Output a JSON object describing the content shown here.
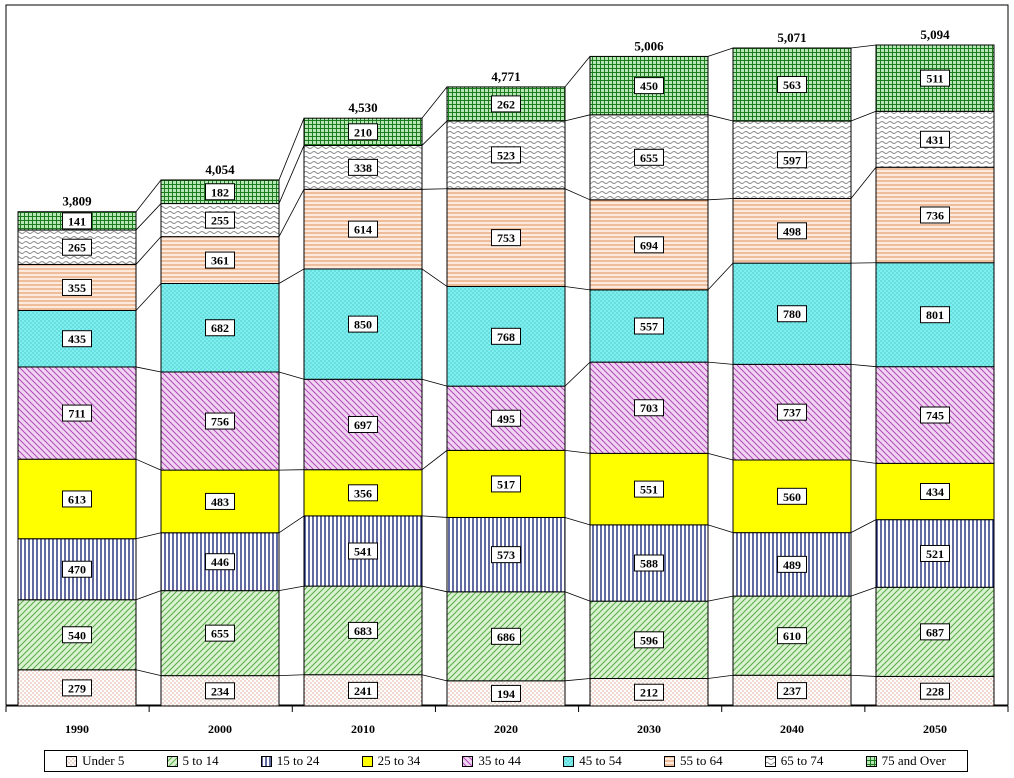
{
  "chart_data": {
    "type": "bar",
    "stacked": true,
    "categories": [
      "1990",
      "2000",
      "2010",
      "2020",
      "2030",
      "2040",
      "2050"
    ],
    "totals": [
      "3,809",
      "4,054",
      "4,530",
      "4,771",
      "5,006",
      "5,071",
      "5,094"
    ],
    "series": [
      {
        "name": "Under 5",
        "color": "#f5c6b4",
        "pattern": "dots",
        "values": [
          279,
          234,
          241,
          194,
          212,
          237,
          228
        ]
      },
      {
        "name": "5 to 14",
        "color": "#b8e6a8",
        "pattern": "diag-up",
        "values": [
          540,
          655,
          683,
          686,
          596,
          610,
          687
        ]
      },
      {
        "name": "15 to 24",
        "color": "#1f2a7a",
        "pattern": "vertical",
        "values": [
          470,
          446,
          541,
          573,
          588,
          489,
          521
        ]
      },
      {
        "name": "25 to 34",
        "color": "#ffff00",
        "pattern": "solid",
        "values": [
          613,
          483,
          356,
          517,
          551,
          560,
          434
        ]
      },
      {
        "name": "35 to 44",
        "color": "#c266c8",
        "pattern": "diag-down",
        "values": [
          711,
          756,
          697,
          495,
          703,
          737,
          745
        ]
      },
      {
        "name": "45 to 54",
        "color": "#4fe3e3",
        "pattern": "dots-cyan",
        "values": [
          435,
          682,
          850,
          768,
          557,
          780,
          801
        ]
      },
      {
        "name": "55 to 64",
        "color": "#e8a070",
        "pattern": "horizontal",
        "values": [
          355,
          361,
          614,
          753,
          694,
          498,
          736
        ]
      },
      {
        "name": "65 to 74",
        "color": "#b0b0b0",
        "pattern": "wave",
        "values": [
          265,
          255,
          338,
          523,
          655,
          597,
          431
        ]
      },
      {
        "name": "75 and Over",
        "color": "#2e8b2e",
        "pattern": "grid",
        "values": [
          141,
          182,
          210,
          262,
          450,
          563,
          511
        ]
      }
    ],
    "ylim": [
      0,
      5094
    ],
    "legend_position": "bottom",
    "grid": false
  }
}
